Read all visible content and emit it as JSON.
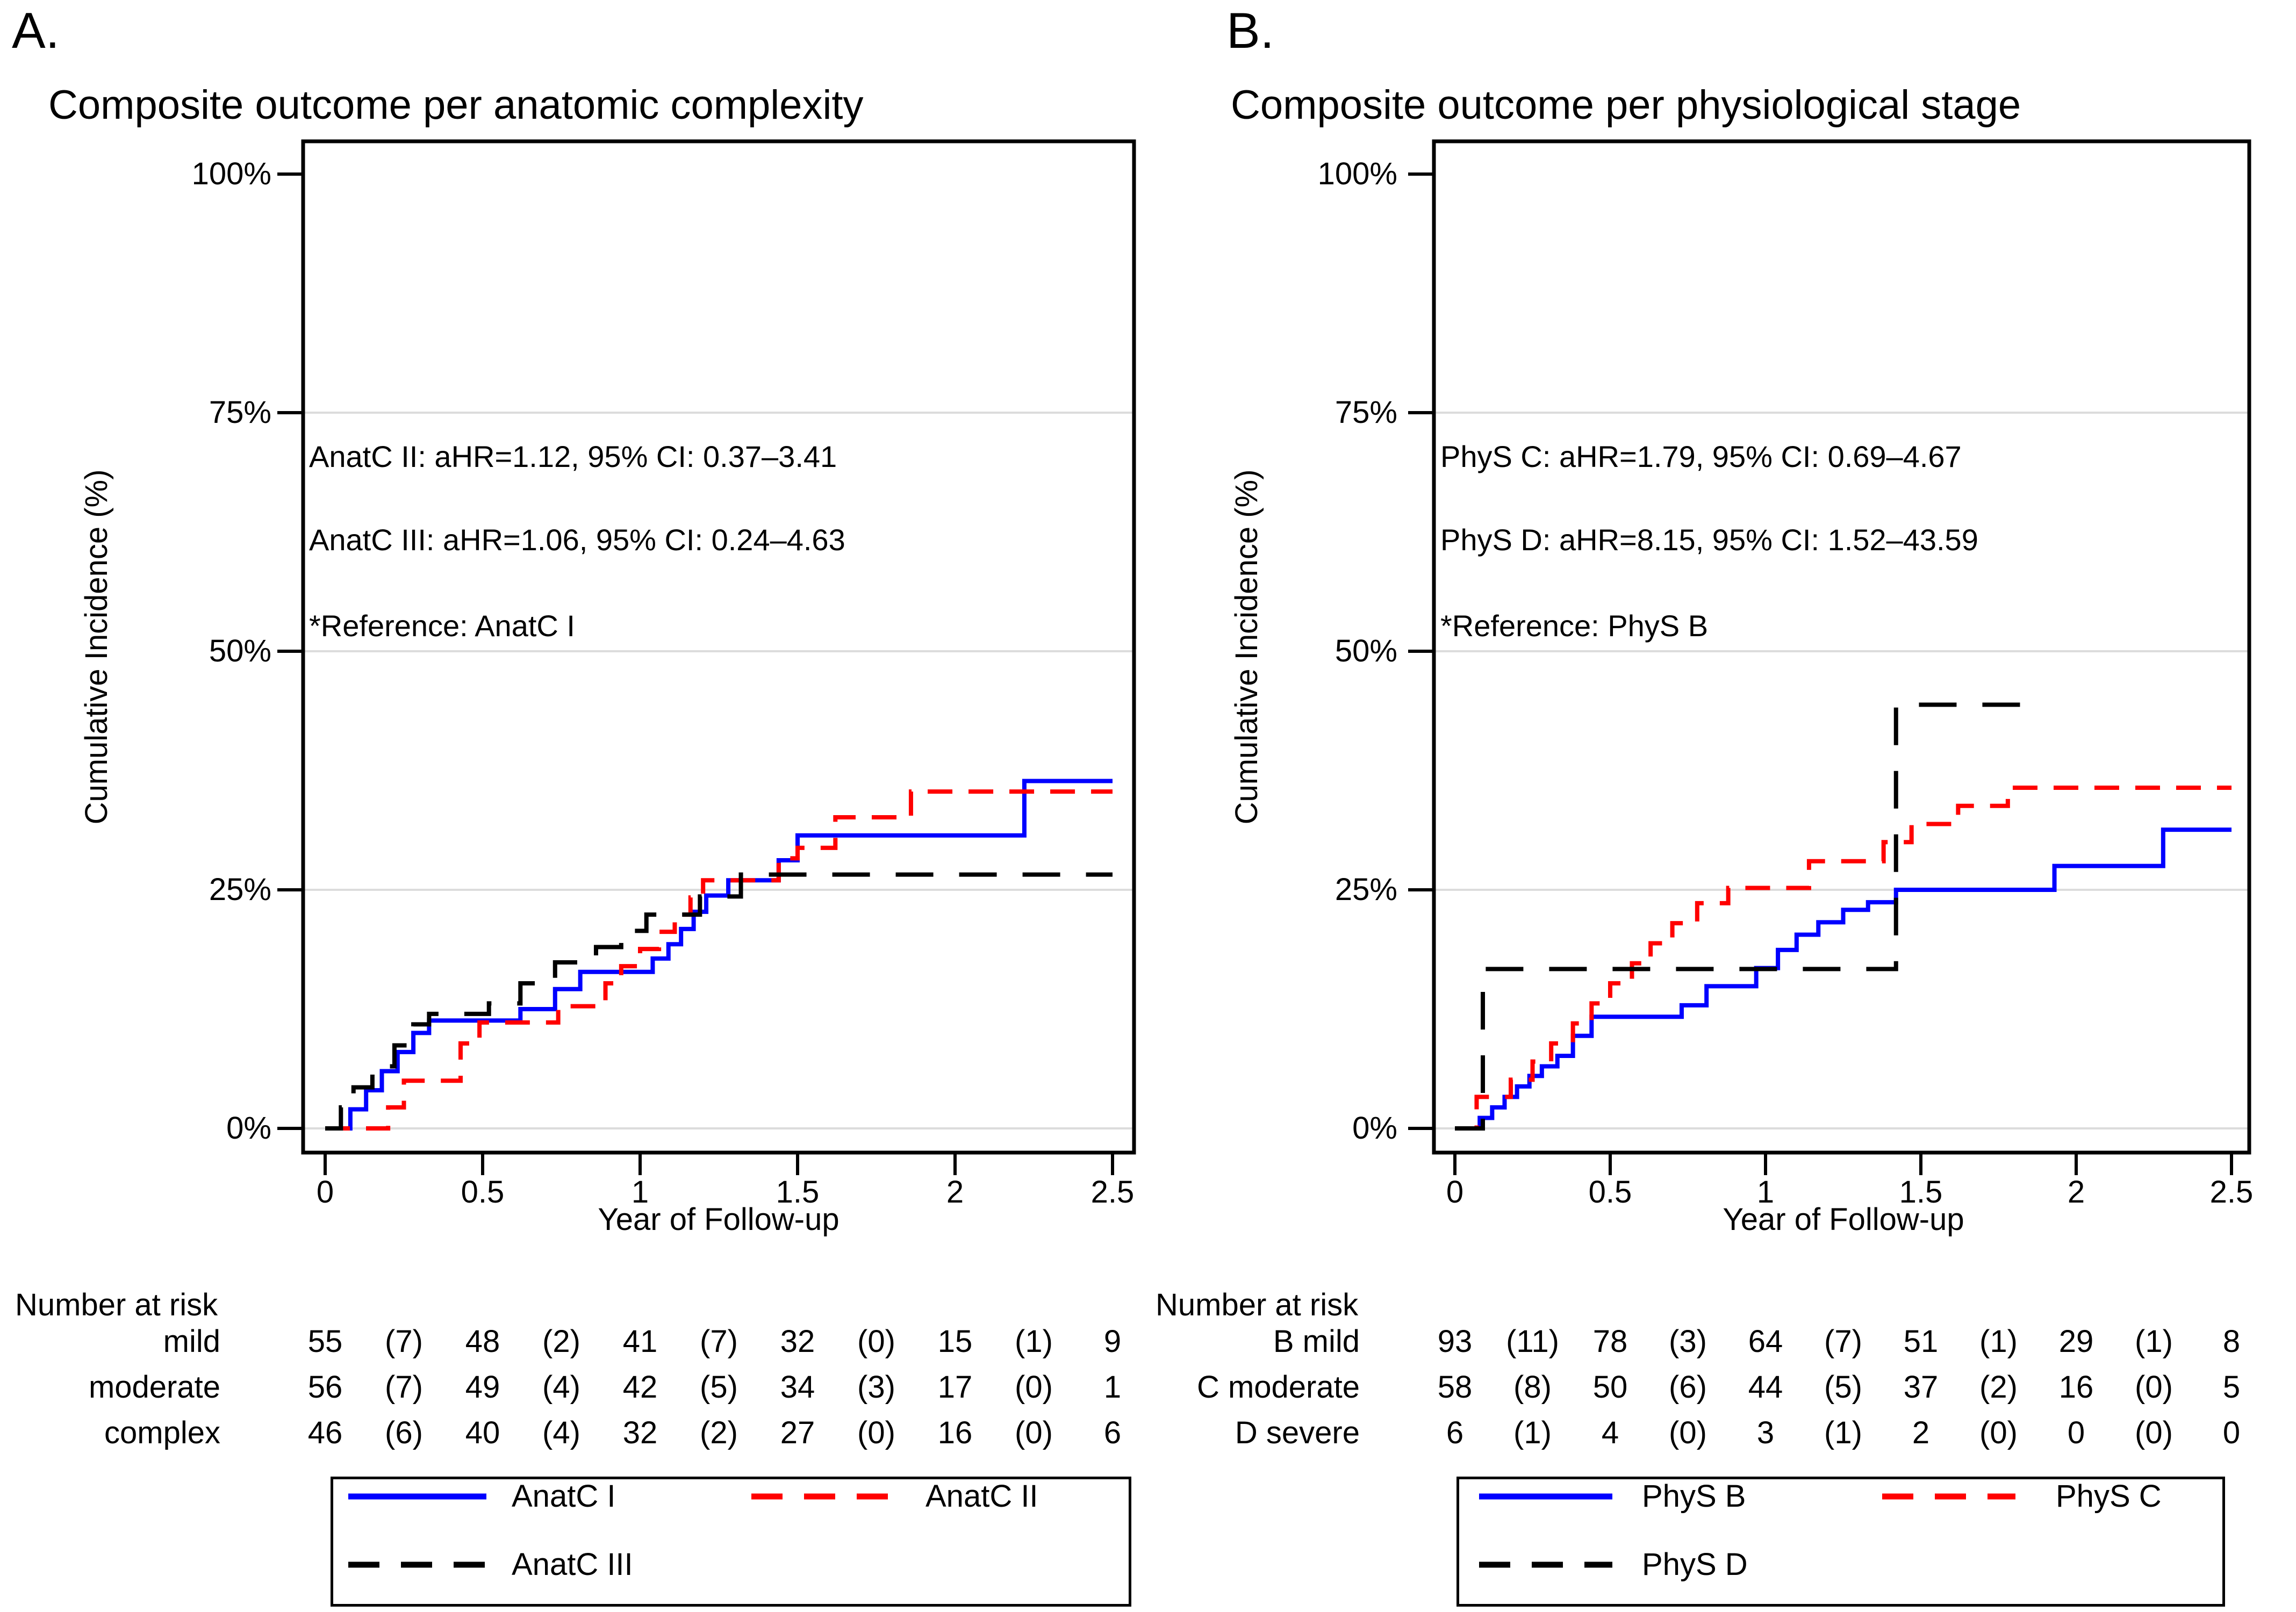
{
  "figure": {
    "panels": [
      {
        "letter": "A.",
        "title": "Composite outcome per anatomic complexity",
        "y_axis_label": "Cumulative Incidence (%)",
        "x_axis_label": "Year of Follow-up",
        "y_ticks": [
          "100%",
          "75%",
          "50%",
          "25%",
          "0%"
        ],
        "x_ticks": [
          "0",
          "0.5",
          "1",
          "1.5",
          "2",
          "2.5"
        ],
        "annotations": [
          "AnatC II: aHR=1.12, 95% CI: 0.37–3.41",
          "AnatC III: aHR=1.06, 95% CI: 0.24–4.63",
          "*Reference: AnatC I"
        ],
        "risk_heading": "Number at risk",
        "risk_rows": [
          {
            "label": "mild",
            "values": [
              "55",
              "(7)",
              "48",
              "(2)",
              "41",
              "(7)",
              "32",
              "(0)",
              "15",
              "(1)",
              "9"
            ]
          },
          {
            "label": "moderate",
            "values": [
              "56",
              "(7)",
              "49",
              "(4)",
              "42",
              "(5)",
              "34",
              "(3)",
              "17",
              "(0)",
              "1"
            ]
          },
          {
            "label": "complex",
            "values": [
              "46",
              "(6)",
              "40",
              "(4)",
              "32",
              "(2)",
              "27",
              "(0)",
              "16",
              "(0)",
              "6"
            ]
          }
        ],
        "legend": [
          {
            "label": "AnatC I",
            "color": "#0000ff",
            "style": "solid"
          },
          {
            "label": "AnatC II",
            "color": "#ff0000",
            "style": "dashed"
          },
          {
            "label": "AnatC III",
            "color": "#000000",
            "style": "dashed"
          }
        ]
      },
      {
        "letter": "B.",
        "title": "Composite outcome per physiological stage",
        "y_axis_label": "Cumulative Incidence (%)",
        "x_axis_label": "Year of Follow-up",
        "y_ticks": [
          "100%",
          "75%",
          "50%",
          "25%",
          "0%"
        ],
        "x_ticks": [
          "0",
          "0.5",
          "1",
          "1.5",
          "2",
          "2.5"
        ],
        "annotations": [
          "PhyS C: aHR=1.79, 95% CI: 0.69–4.67",
          "PhyS D: aHR=8.15, 95% CI: 1.52–43.59",
          "*Reference: PhyS B"
        ],
        "risk_heading": "Number at risk",
        "risk_rows": [
          {
            "label": "B mild",
            "values": [
              "93",
              "(11)",
              "78",
              "(3)",
              "64",
              "(7)",
              "51",
              "(1)",
              "29",
              "(1)",
              "8"
            ]
          },
          {
            "label": "C moderate",
            "values": [
              "58",
              "(8)",
              "50",
              "(6)",
              "44",
              "(5)",
              "37",
              "(2)",
              "16",
              "(0)",
              "5"
            ]
          },
          {
            "label": "D severe",
            "values": [
              "6",
              "(1)",
              "4",
              "(0)",
              "3",
              "(1)",
              "2",
              "(0)",
              "0",
              "(0)",
              "0"
            ]
          }
        ],
        "legend": [
          {
            "label": "PhyS B",
            "color": "#0000ff",
            "style": "solid"
          },
          {
            "label": "PhyS C",
            "color": "#ff0000",
            "style": "dashed"
          },
          {
            "label": "PhyS D",
            "color": "#000000",
            "style": "dashed"
          }
        ]
      }
    ]
  },
  "chart_data": [
    {
      "type": "line",
      "subtype": "step-cumulative-incidence",
      "title": "Composite outcome per anatomic complexity",
      "xlabel": "Year of Follow-up",
      "ylabel": "Cumulative Incidence (%)",
      "xlim": [
        0,
        2.5
      ],
      "ylim": [
        0,
        100
      ],
      "x_ticks": [
        0,
        0.5,
        1,
        1.5,
        2,
        2.5
      ],
      "y_ticks": [
        0,
        25,
        50,
        75,
        100
      ],
      "grid": "horizontal",
      "legend_position": "bottom",
      "series": [
        {
          "name": "AnatC I",
          "color": "#0000ff",
          "line": "solid",
          "points": [
            [
              0,
              0
            ],
            [
              0.08,
              2
            ],
            [
              0.13,
              4
            ],
            [
              0.18,
              6
            ],
            [
              0.23,
              8
            ],
            [
              0.28,
              10
            ],
            [
              0.33,
              11.3
            ],
            [
              0.62,
              12.5
            ],
            [
              0.73,
              14.6
            ],
            [
              0.81,
              16.4
            ],
            [
              1.04,
              17.8
            ],
            [
              1.09,
              19.3
            ],
            [
              1.13,
              20.9
            ],
            [
              1.17,
              22.7
            ],
            [
              1.21,
              24.4
            ],
            [
              1.28,
              26
            ],
            [
              1.44,
              28.1
            ],
            [
              1.5,
              30.7
            ],
            [
              2.22,
              36.4
            ],
            [
              2.5,
              36.4
            ]
          ]
        },
        {
          "name": "AnatC II",
          "color": "#ff0000",
          "line": "dashed",
          "points": [
            [
              0,
              0
            ],
            [
              0.2,
              2.2
            ],
            [
              0.25,
              5
            ],
            [
              0.43,
              8.9
            ],
            [
              0.49,
              11.1
            ],
            [
              0.74,
              12.8
            ],
            [
              0.89,
              15.2
            ],
            [
              0.94,
              17
            ],
            [
              1.0,
              18.8
            ],
            [
              1.06,
              20.6
            ],
            [
              1.11,
              22.4
            ],
            [
              1.16,
              24.2
            ],
            [
              1.2,
              26
            ],
            [
              1.44,
              28.3
            ],
            [
              1.5,
              29.4
            ],
            [
              1.62,
              32.6
            ],
            [
              1.86,
              35.3
            ],
            [
              2.5,
              35.3
            ]
          ]
        },
        {
          "name": "AnatC III",
          "color": "#000000",
          "line": "dashed",
          "points": [
            [
              0,
              0
            ],
            [
              0.05,
              2.2
            ],
            [
              0.09,
              4.3
            ],
            [
              0.15,
              6.5
            ],
            [
              0.22,
              8.7
            ],
            [
              0.28,
              10.9
            ],
            [
              0.33,
              12
            ],
            [
              0.52,
              13.1
            ],
            [
              0.62,
              15.2
            ],
            [
              0.73,
              17.4
            ],
            [
              0.86,
              19
            ],
            [
              0.94,
              20.7
            ],
            [
              1.02,
              22.4
            ],
            [
              1.19,
              24.3
            ],
            [
              1.32,
              26.6
            ],
            [
              2.5,
              26.6
            ]
          ]
        }
      ]
    },
    {
      "type": "line",
      "subtype": "step-cumulative-incidence",
      "title": "Composite outcome per physiological stage",
      "xlabel": "Year of Follow-up",
      "ylabel": "Cumulative Incidence (%)",
      "xlim": [
        0,
        2.5
      ],
      "ylim": [
        0,
        100
      ],
      "x_ticks": [
        0,
        0.5,
        1,
        1.5,
        2,
        2.5
      ],
      "y_ticks": [
        0,
        25,
        50,
        75,
        100
      ],
      "grid": "horizontal",
      "legend_position": "bottom",
      "series": [
        {
          "name": "PhyS B",
          "color": "#0000ff",
          "line": "solid",
          "points": [
            [
              0,
              0
            ],
            [
              0.08,
              1.1
            ],
            [
              0.12,
              2.2
            ],
            [
              0.16,
              3.3
            ],
            [
              0.2,
              4.4
            ],
            [
              0.24,
              5.5
            ],
            [
              0.28,
              6.5
            ],
            [
              0.33,
              7.6
            ],
            [
              0.38,
              9.7
            ],
            [
              0.44,
              11.7
            ],
            [
              0.73,
              12.9
            ],
            [
              0.81,
              14.9
            ],
            [
              0.97,
              16.8
            ],
            [
              1.04,
              18.7
            ],
            [
              1.1,
              20.3
            ],
            [
              1.17,
              21.6
            ],
            [
              1.25,
              22.9
            ],
            [
              1.33,
              23.7
            ],
            [
              1.42,
              25
            ],
            [
              1.93,
              27.5
            ],
            [
              2.28,
              31.3
            ],
            [
              2.5,
              31.3
            ]
          ]
        },
        {
          "name": "PhyS C",
          "color": "#ff0000",
          "line": "dashed",
          "points": [
            [
              0,
              0
            ],
            [
              0.07,
              3.3
            ],
            [
              0.18,
              5.1
            ],
            [
              0.25,
              7
            ],
            [
              0.31,
              8.9
            ],
            [
              0.38,
              11
            ],
            [
              0.44,
              13.1
            ],
            [
              0.5,
              15.2
            ],
            [
              0.57,
              17.3
            ],
            [
              0.63,
              19.4
            ],
            [
              0.7,
              21.5
            ],
            [
              0.78,
              23.6
            ],
            [
              0.88,
              25.2
            ],
            [
              1.14,
              28
            ],
            [
              1.38,
              30
            ],
            [
              1.47,
              31.9
            ],
            [
              1.62,
              33.8
            ],
            [
              1.78,
              35.7
            ],
            [
              2.5,
              35.7
            ]
          ]
        },
        {
          "name": "PhyS D",
          "color": "#000000",
          "line": "dashed",
          "points": [
            [
              0,
              0
            ],
            [
              0.09,
              16.7
            ],
            [
              1.42,
              44.4
            ],
            [
              1.86,
              44.4
            ]
          ]
        }
      ]
    }
  ]
}
